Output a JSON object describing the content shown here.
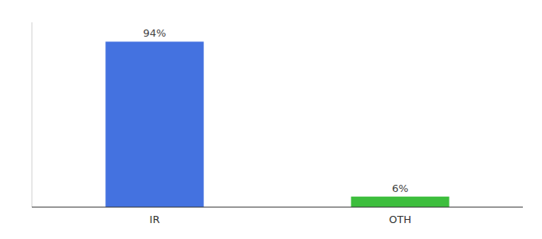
{
  "chart_data": {
    "type": "bar",
    "categories": [
      "IR",
      "OTH"
    ],
    "values": [
      94,
      6
    ],
    "value_labels": [
      "94%",
      "6%"
    ],
    "colors": [
      "#4472e0",
      "#3dbe3d"
    ],
    "ylim": [
      0,
      105
    ],
    "data_labels": true,
    "tick_labels": "x"
  }
}
